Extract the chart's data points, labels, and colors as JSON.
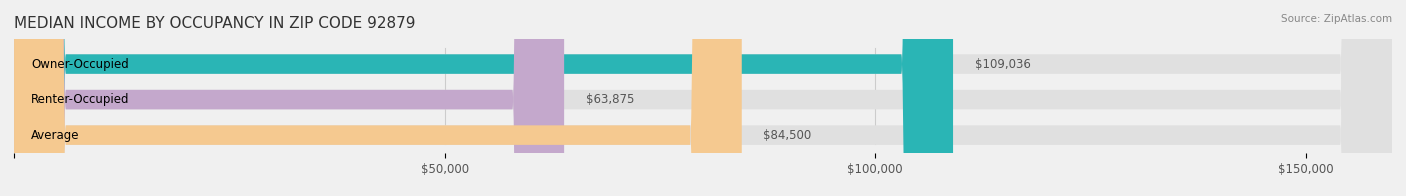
{
  "title": "MEDIAN INCOME BY OCCUPANCY IN ZIP CODE 92879",
  "source_text": "Source: ZipAtlas.com",
  "categories": [
    "Owner-Occupied",
    "Renter-Occupied",
    "Average"
  ],
  "values": [
    109036,
    63875,
    84500
  ],
  "labels": [
    "$109,036",
    "$63,875",
    "$84,500"
  ],
  "bar_colors": [
    "#2ab5b5",
    "#c4a8cc",
    "#f5c990"
  ],
  "bar_edge_colors": [
    "#2ab5b5",
    "#c4a8cc",
    "#f5c990"
  ],
  "background_color": "#f0f0f0",
  "bar_bg_color": "#e8e8e8",
  "xlim": [
    0,
    160000
  ],
  "xticks": [
    0,
    50000,
    100000,
    150000
  ],
  "xtick_labels": [
    "",
    "$50,000",
    "$100,000",
    "$150,000"
  ],
  "title_fontsize": 11,
  "tick_fontsize": 8.5,
  "label_fontsize": 8.5,
  "bar_label_fontsize": 8.5,
  "category_fontsize": 8.5,
  "bar_height": 0.55,
  "figsize": [
    14.06,
    1.96
  ],
  "dpi": 100
}
